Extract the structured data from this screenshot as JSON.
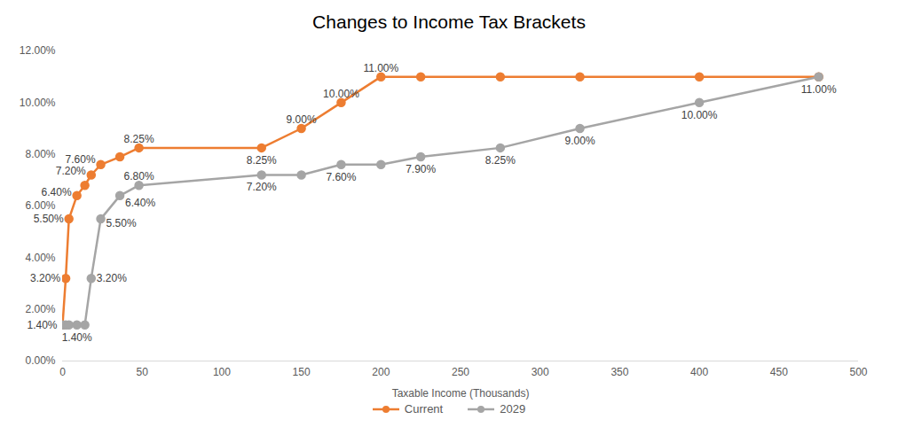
{
  "chart_data": {
    "type": "line",
    "title": "Changes to Income Tax Brackets",
    "x_label": "Taxable Income (Thousands)",
    "x": [
      0,
      2,
      4,
      9,
      14,
      18,
      24,
      36,
      48,
      125,
      150,
      175,
      200,
      225,
      275,
      325,
      400,
      475
    ],
    "series": [
      {
        "name": "Current",
        "color": "#ED7D31",
        "marker": "circle",
        "line_style": "solid",
        "values": [
          1.4,
          3.2,
          5.5,
          6.4,
          6.8,
          7.2,
          7.6,
          7.9,
          8.25,
          8.25,
          9.0,
          10.0,
          11.0,
          11.0,
          11.0,
          11.0,
          11.0,
          11.0
        ],
        "value_labels": [
          "1.40%",
          "3.20%",
          "5.50%",
          "6.40%",
          null,
          "7.20%",
          "7.60%",
          null,
          "8.25%",
          "8.25%",
          "9.00%",
          "10.00%",
          "11.00%",
          null,
          null,
          null,
          null,
          null
        ]
      },
      {
        "name": "2029",
        "color": "#A5A5A5",
        "marker": "circle",
        "line_style": "solid",
        "values": [
          1.4,
          1.4,
          1.4,
          1.4,
          1.4,
          3.2,
          5.5,
          6.4,
          6.8,
          7.2,
          7.2,
          7.6,
          7.6,
          7.9,
          8.25,
          9.0,
          10.0,
          11.0
        ],
        "value_labels": [
          null,
          null,
          null,
          "1.40%",
          null,
          "3.20%",
          "5.50%",
          "6.40%",
          "6.80%",
          "7.20%",
          null,
          "7.60%",
          null,
          "7.90%",
          "8.25%",
          "9.00%",
          "10.00%",
          "11.00%"
        ]
      }
    ],
    "xlim": [
      0,
      500
    ],
    "xticks": [
      0,
      50,
      100,
      150,
      200,
      250,
      300,
      350,
      400,
      450,
      500
    ],
    "ylim": [
      0,
      12
    ],
    "yticks": [
      {
        "value": 0,
        "label": "0.00%"
      },
      {
        "value": 2,
        "label": "2.00%"
      },
      {
        "value": 4,
        "label": "4.00%"
      },
      {
        "value": 6,
        "label": "6.00%"
      },
      {
        "value": 8,
        "label": "8.00%"
      },
      {
        "value": 10,
        "label": "10.00%"
      },
      {
        "value": 12,
        "label": "12.00%"
      }
    ],
    "grid": false,
    "legend": "bottom",
    "data_labels": true
  }
}
